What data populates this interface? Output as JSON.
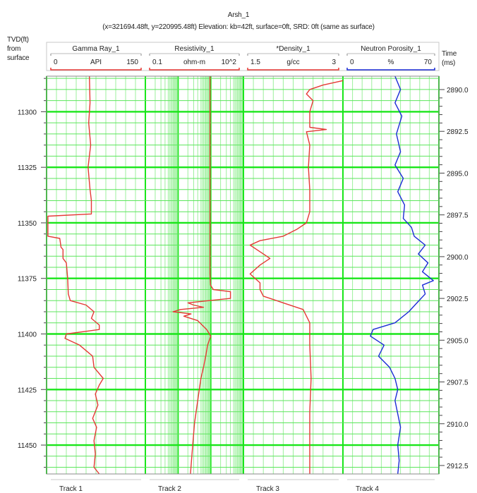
{
  "header": {
    "title": "Arsh_1",
    "subtitle": "(x=321694.48ft, y=220995.48ft) Elevation: kb=42ft, surface=0ft, SRD: 0ft (same as surface)"
  },
  "axis_left": {
    "title_lines": [
      "TVD(ft)",
      "from",
      "surface"
    ]
  },
  "axis_right": {
    "title_lines": [
      "Time",
      "(ms)"
    ]
  },
  "chart_data": {
    "type": "line",
    "depth_axis": {
      "label": "TVD(ft) from surface",
      "range": [
        11284,
        11463
      ],
      "ticks": [
        "11300",
        "11325",
        "11350",
        "11375",
        "11400",
        "11425",
        "11450"
      ]
    },
    "time_axis": {
      "label": "Time (ms)",
      "ticks": [
        "2890.0",
        "2892.5",
        "2895.0",
        "2897.5",
        "2900.0",
        "2902.5",
        "2905.0",
        "2907.5",
        "2910.0",
        "2912.5"
      ]
    },
    "grid": true,
    "tracks": [
      {
        "name": "Track 1",
        "curve": "Gamma Ray_1",
        "unit": "API",
        "min_label": "0",
        "max_label": "150",
        "scale": "linear",
        "range": [
          0,
          150
        ],
        "color": "#e53935",
        "points": [
          [
            11284,
            65
          ],
          [
            11296,
            66
          ],
          [
            11305,
            64
          ],
          [
            11315,
            67
          ],
          [
            11325,
            63
          ],
          [
            11335,
            66
          ],
          [
            11340,
            68
          ],
          [
            11346,
            68
          ],
          [
            11347,
            2
          ],
          [
            11356,
            2
          ],
          [
            11357,
            20
          ],
          [
            11361,
            22
          ],
          [
            11362,
            25
          ],
          [
            11366,
            25
          ],
          [
            11368,
            30
          ],
          [
            11375,
            32
          ],
          [
            11382,
            33
          ],
          [
            11385,
            36
          ],
          [
            11387,
            60
          ],
          [
            11390,
            72
          ],
          [
            11393,
            68
          ],
          [
            11396,
            80
          ],
          [
            11398,
            80
          ],
          [
            11400,
            30
          ],
          [
            11402,
            28
          ],
          [
            11405,
            50
          ],
          [
            11410,
            70
          ],
          [
            11415,
            72
          ],
          [
            11420,
            86
          ],
          [
            11423,
            80
          ],
          [
            11427,
            74
          ],
          [
            11432,
            78
          ],
          [
            11438,
            70
          ],
          [
            11442,
            76
          ],
          [
            11448,
            72
          ],
          [
            11454,
            74
          ],
          [
            11460,
            72
          ],
          [
            11463,
            80
          ]
        ]
      },
      {
        "name": "Track 2",
        "curve": "Resistivity_1",
        "unit": "ohm-m",
        "min_label": "0.1",
        "max_label": "10^2",
        "scale": "log",
        "range": [
          0.1,
          100
        ],
        "color": "#e53935",
        "points": [
          [
            11284,
            9.5
          ],
          [
            11296,
            9.5
          ],
          [
            11320,
            9.5
          ],
          [
            11350,
            9.5
          ],
          [
            11373,
            9.5
          ],
          [
            11378,
            9.8
          ],
          [
            11380,
            12
          ],
          [
            11381,
            40
          ],
          [
            11384,
            40
          ],
          [
            11385,
            9
          ],
          [
            11386,
            2
          ],
          [
            11387,
            3
          ],
          [
            11388,
            6
          ],
          [
            11389,
            1.2
          ],
          [
            11390,
            0.7
          ],
          [
            11391,
            2.5
          ],
          [
            11392,
            1.5
          ],
          [
            11394,
            4
          ],
          [
            11398,
            7.5
          ],
          [
            11401,
            10
          ],
          [
            11405,
            8
          ],
          [
            11410,
            7
          ],
          [
            11415,
            6
          ],
          [
            11420,
            5
          ],
          [
            11430,
            4
          ],
          [
            11440,
            3.2
          ],
          [
            11450,
            2.8
          ],
          [
            11463,
            2.4
          ]
        ]
      },
      {
        "name": "Track 3",
        "curve": "*Density_1",
        "unit": "g/cc",
        "min_label": "1.5",
        "max_label": "3",
        "scale": "linear",
        "range": [
          1.5,
          3
        ],
        "color": "#e53935",
        "points": [
          [
            11286,
            3.0
          ],
          [
            11288,
            2.7
          ],
          [
            11290,
            2.5
          ],
          [
            11292,
            2.45
          ],
          [
            11295,
            2.55
          ],
          [
            11300,
            2.5
          ],
          [
            11307,
            2.5
          ],
          [
            11308,
            2.75
          ],
          [
            11309,
            2.45
          ],
          [
            11315,
            2.5
          ],
          [
            11325,
            2.48
          ],
          [
            11335,
            2.5
          ],
          [
            11345,
            2.5
          ],
          [
            11350,
            2.45
          ],
          [
            11353,
            2.3
          ],
          [
            11356,
            2.1
          ],
          [
            11358,
            1.75
          ],
          [
            11360,
            1.6
          ],
          [
            11362,
            1.7
          ],
          [
            11364,
            1.8
          ],
          [
            11366,
            1.9
          ],
          [
            11369,
            1.75
          ],
          [
            11373,
            1.6
          ],
          [
            11377,
            1.75
          ],
          [
            11380,
            1.75
          ],
          [
            11383,
            1.8
          ],
          [
            11386,
            2.1
          ],
          [
            11389,
            2.4
          ],
          [
            11395,
            2.5
          ],
          [
            11405,
            2.5
          ],
          [
            11420,
            2.52
          ],
          [
            11435,
            2.5
          ],
          [
            11450,
            2.5
          ],
          [
            11463,
            2.5
          ]
        ]
      },
      {
        "name": "Track 4",
        "curve": "Neutron Porosity_1",
        "unit": "%",
        "min_label": "0",
        "max_label": "70",
        "scale": "linear",
        "range": [
          0,
          70
        ],
        "color": "#1a2bd6",
        "points": [
          [
            11284,
            38
          ],
          [
            11290,
            42
          ],
          [
            11296,
            38
          ],
          [
            11302,
            43
          ],
          [
            11310,
            39
          ],
          [
            11318,
            42
          ],
          [
            11324,
            38
          ],
          [
            11330,
            44
          ],
          [
            11336,
            40
          ],
          [
            11342,
            45
          ],
          [
            11348,
            44
          ],
          [
            11352,
            50
          ],
          [
            11356,
            52
          ],
          [
            11360,
            60
          ],
          [
            11364,
            55
          ],
          [
            11368,
            62
          ],
          [
            11372,
            58
          ],
          [
            11376,
            66
          ],
          [
            11378,
            58
          ],
          [
            11382,
            60
          ],
          [
            11386,
            54
          ],
          [
            11390,
            48
          ],
          [
            11395,
            38
          ],
          [
            11398,
            22
          ],
          [
            11401,
            20
          ],
          [
            11405,
            30
          ],
          [
            11410,
            26
          ],
          [
            11415,
            34
          ],
          [
            11420,
            38
          ],
          [
            11425,
            40
          ],
          [
            11430,
            38
          ],
          [
            11436,
            40
          ],
          [
            11442,
            42
          ],
          [
            11450,
            40
          ],
          [
            11457,
            41
          ],
          [
            11463,
            40
          ]
        ]
      }
    ]
  }
}
